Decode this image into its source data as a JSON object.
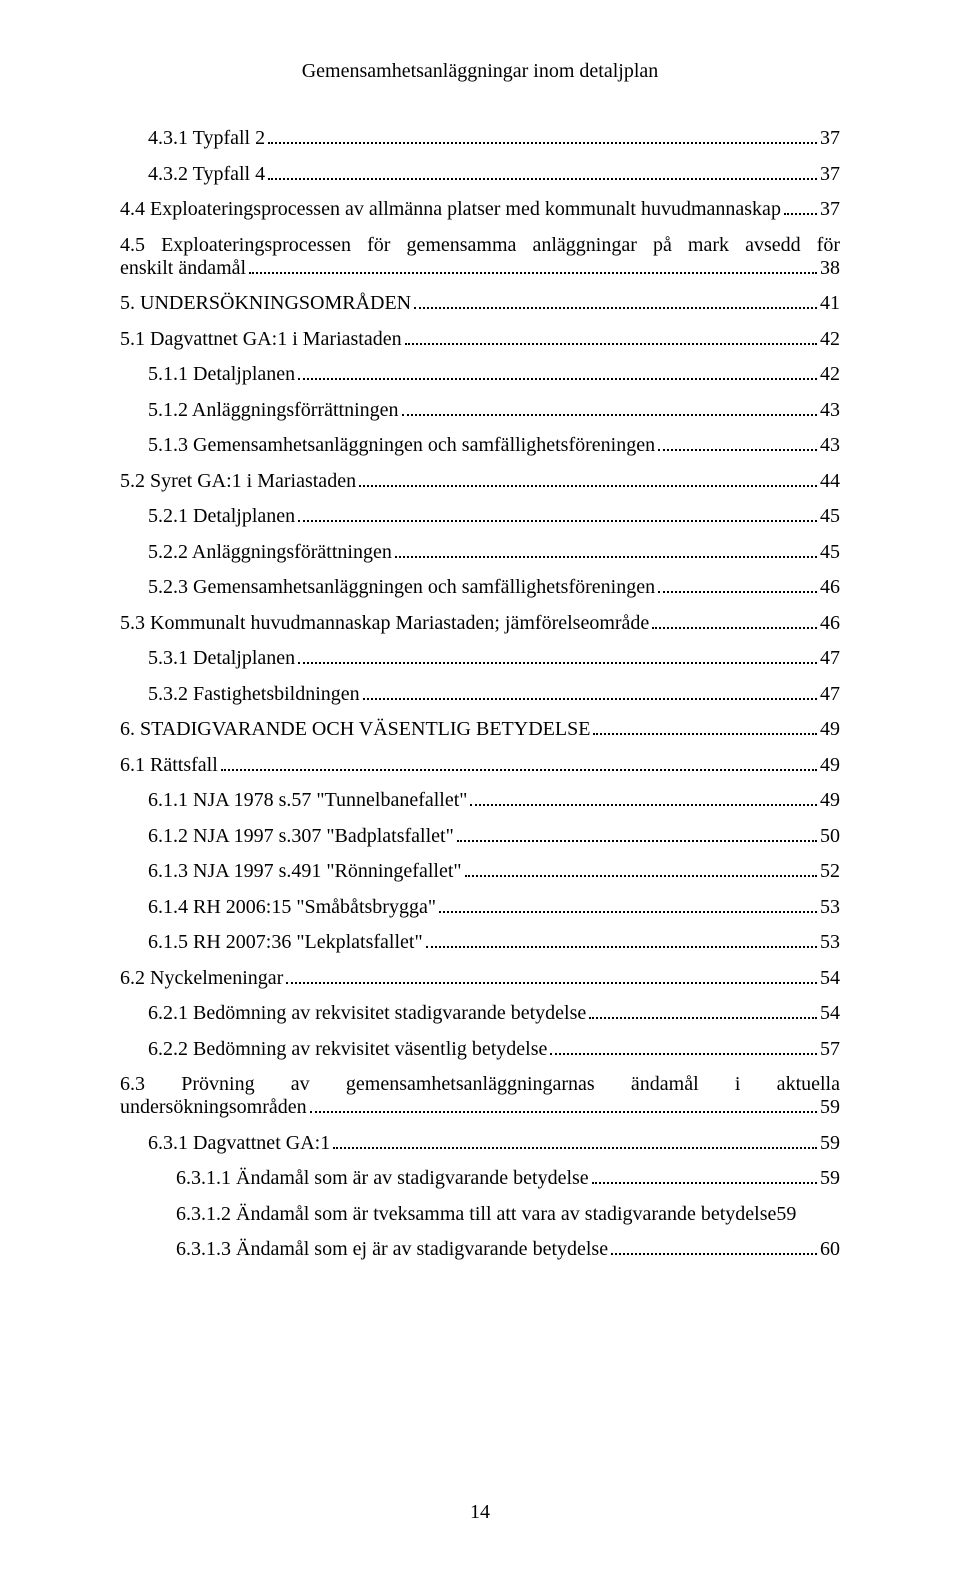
{
  "header": "Gemensamhetsanläggningar inom detaljplan",
  "footer": "14",
  "l0": {
    "text": "4.3.1 Typfall 2",
    "page": "37"
  },
  "l1": {
    "text": "4.3.2 Typfall 4",
    "page": "37"
  },
  "l2": {
    "text": "4.4 Exploateringsprocessen av allmänna platser med kommunalt huvudmannaskap",
    "page": "37"
  },
  "l3": {
    "t1": "4.5 Exploateringsprocessen för gemensamma anläggningar på mark avsedd för",
    "t2": "enskilt ändamål",
    "page": "38"
  },
  "l4": {
    "text": "5. UNDERSÖKNINGSOMRÅDEN",
    "page": "41"
  },
  "l5": {
    "text": "5.1 Dagvattnet GA:1 i Mariastaden",
    "page": "42"
  },
  "l6": {
    "text": "5.1.1 Detaljplanen",
    "page": "42"
  },
  "l7": {
    "text": "5.1.2 Anläggningsförrättningen",
    "page": "43"
  },
  "l8": {
    "text": "5.1.3 Gemensamhetsanläggningen och samfällighetsföreningen",
    "page": "43"
  },
  "l9": {
    "text": "5.2 Syret GA:1 i Mariastaden",
    "page": "44"
  },
  "l10": {
    "text": "5.2.1 Detaljplanen",
    "page": "45"
  },
  "l11": {
    "text": "5.2.2 Anläggningsförättningen",
    "page": "45"
  },
  "l12": {
    "text": "5.2.3 Gemensamhetsanläggningen och samfällighetsföreningen",
    "page": "46"
  },
  "l13": {
    "text": "5.3 Kommunalt huvudmannaskap Mariastaden; jämförelseområde",
    "page": "46"
  },
  "l14": {
    "text": "5.3.1 Detaljplanen",
    "page": "47"
  },
  "l15": {
    "text": "5.3.2 Fastighetsbildningen",
    "page": "47"
  },
  "l16": {
    "text": "6. STADIGVARANDE OCH VÄSENTLIG BETYDELSE",
    "page": "49"
  },
  "l17": {
    "text": "6.1 Rättsfall",
    "page": "49"
  },
  "l18": {
    "text": "6.1.1 NJA 1978 s.57 \"Tunnelbanefallet\"",
    "page": "49"
  },
  "l19": {
    "text": "6.1.2 NJA 1997 s.307 \"Badplatsfallet\"",
    "page": "50"
  },
  "l20": {
    "text": "6.1.3 NJA 1997 s.491 \"Rönningefallet\"",
    "page": "52"
  },
  "l21": {
    "text": "6.1.4 RH 2006:15 \"Småbåtsbrygga\"",
    "page": "53"
  },
  "l22": {
    "text": "6.1.5 RH 2007:36 \"Lekplatsfallet\"",
    "page": "53"
  },
  "l23": {
    "text": "6.2 Nyckelmeningar",
    "page": "54"
  },
  "l24": {
    "text": "6.2.1 Bedömning av rekvisitet stadigvarande betydelse",
    "page": "54"
  },
  "l25": {
    "text": "6.2.2 Bedömning av rekvisitet väsentlig betydelse",
    "page": "57"
  },
  "l26": {
    "t1": "6.3 Prövning av gemensamhetsanläggningarnas ändamål i aktuella",
    "t2": "undersökningsområden",
    "page": "59"
  },
  "l27": {
    "text": "6.3.1 Dagvattnet GA:1",
    "page": "59"
  },
  "l28": {
    "text": "6.3.1.1 Ändamål som är av stadigvarande betydelse",
    "page": "59"
  },
  "l29": {
    "text": "6.3.1.2 Ändamål som är tveksamma till att vara av stadigvarande betydelse",
    "page": "59"
  },
  "l30": {
    "text": "6.3.1.3 Ändamål som ej är av stadigvarande betydelse",
    "page": "60"
  }
}
